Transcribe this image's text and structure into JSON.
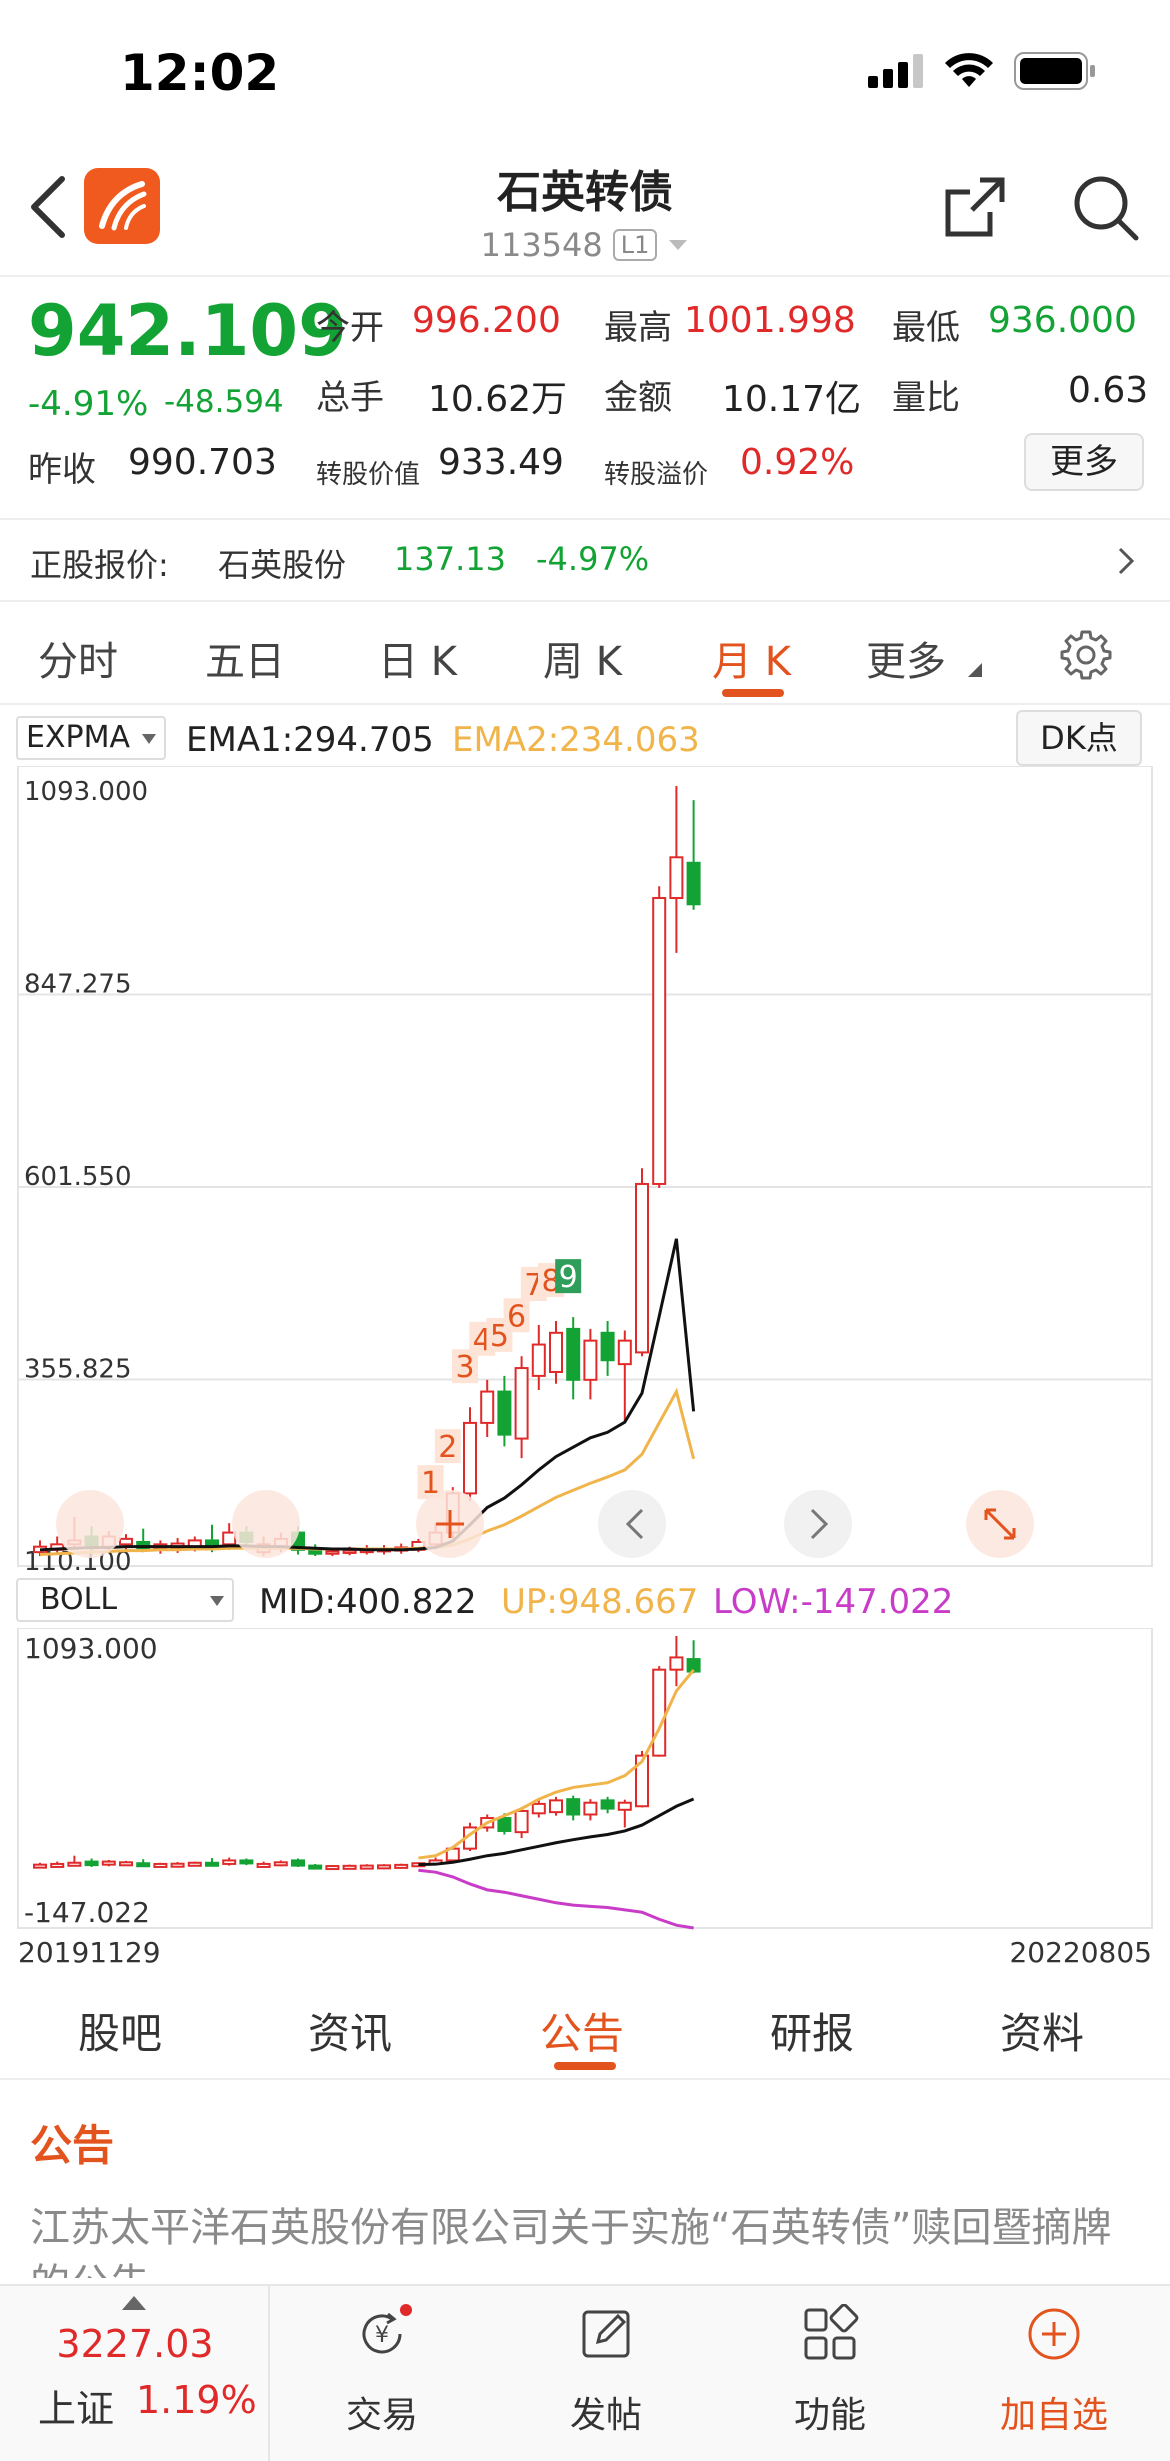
{
  "status_bar": {
    "time": "12:02"
  },
  "header": {
    "title": "石英转债",
    "code": "113548",
    "level": "L1"
  },
  "quote": {
    "price": "942.109",
    "change_pct": "-4.91%",
    "change_amt": "-48.594",
    "open_label": "今开",
    "open": "996.200",
    "high_label": "最高",
    "high": "1001.998",
    "low_label": "最低",
    "low": "936.000",
    "volume_label": "总手",
    "volume": "10.62万",
    "amount_label": "金额",
    "amount": "10.17亿",
    "vol_ratio_label": "量比",
    "vol_ratio": "0.63",
    "prev_close_label": "昨收",
    "prev_close": "990.703",
    "conv_value_label": "转股价值",
    "conv_value": "933.49",
    "conv_premium_label": "转股溢价",
    "conv_premium": "0.92%",
    "more_label": "更多"
  },
  "stock": {
    "label": "正股报价:",
    "name": "石英股份",
    "price": "137.13",
    "change_pct": "-4.97%"
  },
  "period_tabs": [
    "分时",
    "五日",
    "日 K",
    "周 K",
    "月 K",
    "更多"
  ],
  "active_period": "月 K",
  "expma": {
    "name": "EXPMA",
    "ema1": "EMA1:294.705",
    "ema2": "EMA2:234.063",
    "dk_label": "DK点"
  },
  "boll": {
    "name": "BOLL",
    "mid": "MID:400.822",
    "up": "UP:948.667",
    "low": "LOW:-147.022"
  },
  "colors": {
    "up": "#e02a2a",
    "down": "#13a334",
    "ema2": "#f0b44a",
    "accent": "#e2531e",
    "boll_low": "#c83cc8"
  },
  "chart_data": [
    {
      "type": "candlestick",
      "title": "",
      "y_ticks": [
        "1093.000",
        "847.275",
        "601.550",
        "355.825",
        "110.100"
      ],
      "ylim": [
        110.1,
        1093.0
      ],
      "sequence_labels": [
        "1",
        "2",
        "3",
        "4",
        "5",
        "6",
        "7",
        "8",
        "9"
      ],
      "candles": [
        {
          "o": 115,
          "c": 122,
          "h": 130,
          "l": 110
        },
        {
          "o": 118,
          "c": 125,
          "h": 135,
          "l": 112
        },
        {
          "o": 125,
          "c": 130,
          "h": 160,
          "l": 118
        },
        {
          "o": 135,
          "c": 120,
          "h": 148,
          "l": 112
        },
        {
          "o": 122,
          "c": 135,
          "h": 142,
          "l": 115
        },
        {
          "o": 125,
          "c": 132,
          "h": 138,
          "l": 118
        },
        {
          "o": 128,
          "c": 120,
          "h": 145,
          "l": 115
        },
        {
          "o": 120,
          "c": 125,
          "h": 130,
          "l": 113
        },
        {
          "o": 120,
          "c": 126,
          "h": 133,
          "l": 114
        },
        {
          "o": 122,
          "c": 130,
          "h": 135,
          "l": 116
        },
        {
          "o": 130,
          "c": 120,
          "h": 150,
          "l": 115
        },
        {
          "o": 125,
          "c": 140,
          "h": 152,
          "l": 118
        },
        {
          "o": 140,
          "c": 128,
          "h": 148,
          "l": 120
        },
        {
          "o": 115,
          "c": 125,
          "h": 135,
          "l": 110
        },
        {
          "o": 122,
          "c": 132,
          "h": 140,
          "l": 115
        },
        {
          "o": 140,
          "c": 118,
          "h": 148,
          "l": 112
        },
        {
          "o": 118,
          "c": 113,
          "h": 125,
          "l": 110
        },
        {
          "o": 113,
          "c": 116,
          "h": 120,
          "l": 110
        },
        {
          "o": 114,
          "c": 117,
          "h": 122,
          "l": 111
        },
        {
          "o": 115,
          "c": 118,
          "h": 124,
          "l": 112
        },
        {
          "o": 116,
          "c": 119,
          "h": 124,
          "l": 112
        },
        {
          "o": 117,
          "c": 121,
          "h": 126,
          "l": 113
        },
        {
          "o": 118,
          "c": 128,
          "h": 132,
          "l": 115
        },
        {
          "o": 125,
          "c": 140,
          "h": 152,
          "l": 120
        },
        {
          "o": 140,
          "c": 190,
          "h": 198,
          "l": 132
        },
        {
          "o": 190,
          "c": 280,
          "h": 300,
          "l": 180
        },
        {
          "o": 280,
          "c": 320,
          "h": 335,
          "l": 262
        },
        {
          "o": 320,
          "c": 265,
          "h": 340,
          "l": 250
        },
        {
          "o": 260,
          "c": 350,
          "h": 365,
          "l": 235
        },
        {
          "o": 340,
          "c": 380,
          "h": 405,
          "l": 322
        },
        {
          "o": 345,
          "c": 395,
          "h": 410,
          "l": 330
        },
        {
          "o": 400,
          "c": 335,
          "h": 415,
          "l": 310
        },
        {
          "o": 335,
          "c": 385,
          "h": 400,
          "l": 310
        },
        {
          "o": 395,
          "c": 360,
          "h": 410,
          "l": 340
        },
        {
          "o": 355,
          "c": 385,
          "h": 398,
          "l": 280
        },
        {
          "o": 370,
          "c": 585,
          "h": 605,
          "l": 365
        },
        {
          "o": 585,
          "c": 950,
          "h": 965,
          "l": 580
        },
        {
          "o": 950,
          "c": 1002,
          "h": 1093,
          "l": 880
        },
        {
          "o": 995,
          "c": 942,
          "h": 1075,
          "l": 935
        }
      ],
      "ema1": [
        118,
        119,
        120,
        121,
        121,
        122,
        122,
        122,
        122,
        122,
        122,
        123,
        123,
        122,
        122,
        121,
        120,
        119,
        119,
        118,
        118,
        118,
        119,
        121,
        129,
        150,
        172,
        184,
        201,
        220,
        237,
        249,
        261,
        268,
        281,
        318,
        416,
        515,
        294.705
      ],
      "ema2": [
        112,
        113,
        114,
        115,
        116,
        117,
        117,
        118,
        118,
        119,
        119,
        120,
        120,
        120,
        120,
        120,
        119,
        119,
        119,
        119,
        119,
        119,
        120,
        121,
        124,
        132,
        142,
        150,
        161,
        173,
        185,
        194,
        203,
        211,
        220,
        240,
        280,
        320,
        234.063
      ]
    },
    {
      "type": "candlestick",
      "title": "",
      "y_ticks": [
        "1093.000",
        "-147.022"
      ],
      "ylim": [
        -147.022,
        1093.0
      ],
      "x_labels": [
        "20191129",
        "20220805"
      ],
      "up": [
        150,
        150,
        151,
        151,
        152,
        152,
        152,
        152,
        151,
        151,
        151,
        151,
        151,
        150,
        150,
        150,
        149,
        149,
        149,
        148,
        148,
        148,
        150,
        160,
        195,
        250,
        300,
        330,
        360,
        400,
        430,
        450,
        460,
        470,
        500,
        560,
        700,
        860,
        948.667
      ],
      "mid": [
        122,
        122,
        122,
        122,
        123,
        123,
        123,
        123,
        123,
        123,
        123,
        123,
        123,
        122,
        122,
        122,
        122,
        121,
        121,
        121,
        121,
        121,
        122,
        124,
        132,
        145,
        160,
        170,
        185,
        200,
        215,
        228,
        240,
        250,
        265,
        290,
        330,
        370,
        400.822
      ],
      "low": [
        100,
        100,
        100,
        100,
        100,
        100,
        100,
        100,
        100,
        100,
        100,
        100,
        100,
        100,
        100,
        100,
        100,
        100,
        100,
        100,
        100,
        100,
        98,
        90,
        70,
        40,
        15,
        5,
        -10,
        -25,
        -40,
        -50,
        -55,
        -60,
        -70,
        -80,
        -110,
        -135,
        -147.022
      ]
    }
  ],
  "info_tabs": [
    "股吧",
    "资讯",
    "公告",
    "研报",
    "资料"
  ],
  "active_info_tab": "公告",
  "section_title": "公告",
  "notice_text": "江苏太平洋石英股份有限公司关于实施“石英转债”赎回暨摘牌的公告",
  "bottom_bar": {
    "index_value": "3227.03",
    "index_name": "上证",
    "index_pct": "1.19%",
    "items": [
      "交易",
      "发帖",
      "功能",
      "加自选"
    ]
  }
}
